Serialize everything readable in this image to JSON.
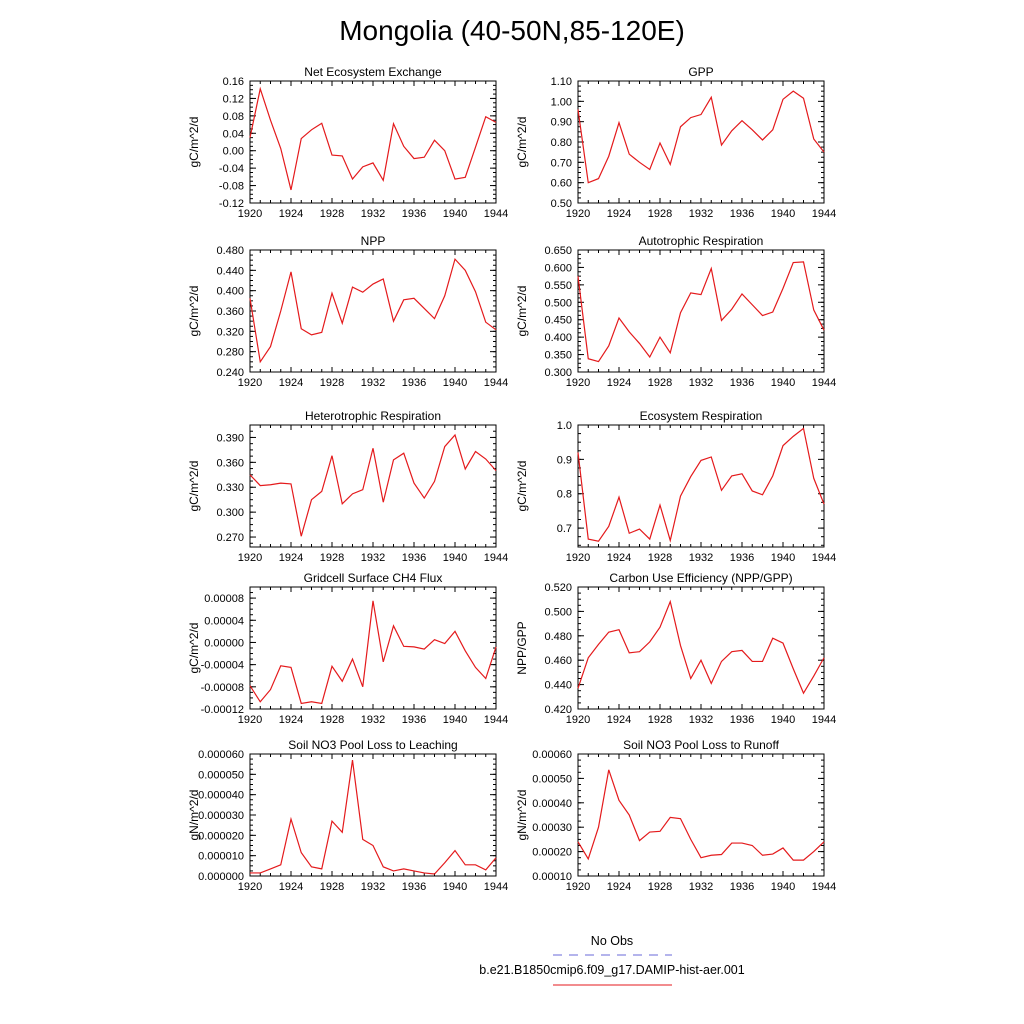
{
  "figure": {
    "title": "Mongolia (40-50N,85-120E)",
    "series_colors": {
      "model": "#e41a1c",
      "obs": "#6a6ad8"
    },
    "legend": [
      {
        "label": "No Obs",
        "style": "dashed",
        "color": "#6a6ad8"
      },
      {
        "label": "b.e21.B1850cmip6.f09_g17.DAMIP-hist-aer.001",
        "style": "solid",
        "color": "#e41a1c"
      }
    ]
  },
  "chart_data": [
    {
      "type": "line",
      "title": "Net Ecosystem Exchange",
      "xlabel": "",
      "ylabel": "gC/m^2/d",
      "xlim": [
        1920,
        1944
      ],
      "ylim": [
        -0.12,
        0.16
      ],
      "xticks": [
        "1920",
        "1924",
        "1928",
        "1932",
        "1936",
        "1940",
        "1944"
      ],
      "yticks": [
        "-0.12",
        "-0.08",
        "-0.04",
        "0.00",
        "0.04",
        "0.08",
        "0.12",
        "0.16"
      ],
      "x": [
        1920,
        1921,
        1922,
        1923,
        1924,
        1925,
        1926,
        1927,
        1928,
        1929,
        1930,
        1931,
        1932,
        1933,
        1934,
        1935,
        1936,
        1937,
        1938,
        1939,
        1940,
        1941,
        1942,
        1943,
        1944
      ],
      "series": [
        {
          "name": "b.e21.B1850cmip6.f09_g17.DAMIP-hist-aer.001",
          "values": [
            0.03,
            0.142,
            0.07,
            0.005,
            -0.09,
            0.028,
            0.048,
            0.063,
            -0.01,
            -0.012,
            -0.065,
            -0.037,
            -0.028,
            -0.068,
            0.062,
            0.01,
            -0.018,
            -0.015,
            0.024,
            0.0,
            -0.065,
            -0.061,
            0.008,
            0.078,
            0.065
          ]
        }
      ]
    },
    {
      "type": "line",
      "title": "GPP",
      "xlabel": "",
      "ylabel": "gC/m^2/d",
      "xlim": [
        1920,
        1944
      ],
      "ylim": [
        0.5,
        1.1
      ],
      "xticks": [
        "1920",
        "1924",
        "1928",
        "1932",
        "1936",
        "1940",
        "1944"
      ],
      "yticks": [
        "0.50",
        "0.60",
        "0.70",
        "0.80",
        "0.90",
        "1.00",
        "1.10"
      ],
      "x": [
        1920,
        1921,
        1922,
        1923,
        1924,
        1925,
        1926,
        1927,
        1928,
        1929,
        1930,
        1931,
        1932,
        1933,
        1934,
        1935,
        1936,
        1937,
        1938,
        1939,
        1940,
        1941,
        1942,
        1943,
        1944
      ],
      "series": [
        {
          "name": "b.e21.B1850cmip6.f09_g17.DAMIP-hist-aer.001",
          "values": [
            0.96,
            0.6,
            0.62,
            0.73,
            0.895,
            0.74,
            0.7,
            0.665,
            0.795,
            0.69,
            0.875,
            0.92,
            0.935,
            1.02,
            0.785,
            0.855,
            0.905,
            0.86,
            0.81,
            0.86,
            1.01,
            1.05,
            1.015,
            0.815,
            0.75
          ]
        }
      ]
    },
    {
      "type": "line",
      "title": "NPP",
      "xlabel": "",
      "ylabel": "gC/m^2/d",
      "xlim": [
        1920,
        1944
      ],
      "ylim": [
        0.24,
        0.48
      ],
      "xticks": [
        "1920",
        "1924",
        "1928",
        "1932",
        "1936",
        "1940",
        "1944"
      ],
      "yticks": [
        "0.240",
        "0.280",
        "0.320",
        "0.360",
        "0.400",
        "0.440",
        "0.480"
      ],
      "x": [
        1920,
        1921,
        1922,
        1923,
        1924,
        1925,
        1926,
        1927,
        1928,
        1929,
        1930,
        1931,
        1932,
        1933,
        1934,
        1935,
        1936,
        1937,
        1938,
        1939,
        1940,
        1941,
        1942,
        1943,
        1944
      ],
      "series": [
        {
          "name": "b.e21.B1850cmip6.f09_g17.DAMIP-hist-aer.001",
          "values": [
            0.385,
            0.26,
            0.29,
            0.36,
            0.437,
            0.325,
            0.313,
            0.318,
            0.395,
            0.336,
            0.407,
            0.397,
            0.413,
            0.423,
            0.34,
            0.382,
            0.385,
            0.365,
            0.345,
            0.39,
            0.462,
            0.44,
            0.398,
            0.338,
            0.323
          ]
        }
      ]
    },
    {
      "type": "line",
      "title": "Autotrophic Respiration",
      "xlabel": "",
      "ylabel": "gC/m^2/d",
      "xlim": [
        1920,
        1944
      ],
      "ylim": [
        0.3,
        0.65
      ],
      "xticks": [
        "1920",
        "1924",
        "1928",
        "1932",
        "1936",
        "1940",
        "1944"
      ],
      "yticks": [
        "0.300",
        "0.350",
        "0.400",
        "0.450",
        "0.500",
        "0.550",
        "0.600",
        "0.650"
      ],
      "x": [
        1920,
        1921,
        1922,
        1923,
        1924,
        1925,
        1926,
        1927,
        1928,
        1929,
        1930,
        1931,
        1932,
        1933,
        1934,
        1935,
        1936,
        1937,
        1938,
        1939,
        1940,
        1941,
        1942,
        1943,
        1944
      ],
      "series": [
        {
          "name": "b.e21.B1850cmip6.f09_g17.DAMIP-hist-aer.001",
          "values": [
            0.575,
            0.338,
            0.33,
            0.375,
            0.455,
            0.415,
            0.382,
            0.343,
            0.4,
            0.355,
            0.47,
            0.527,
            0.522,
            0.597,
            0.448,
            0.48,
            0.524,
            0.493,
            0.462,
            0.472,
            0.54,
            0.614,
            0.616,
            0.478,
            0.42
          ]
        }
      ]
    },
    {
      "type": "line",
      "title": "Heterotrophic Respiration",
      "xlabel": "",
      "ylabel": "gC/m^2/d",
      "xlim": [
        1920,
        1944
      ],
      "ylim": [
        0.258,
        0.405
      ],
      "xticks": [
        "1920",
        "1924",
        "1928",
        "1932",
        "1936",
        "1940",
        "1944"
      ],
      "yticks": [
        "0.270",
        "0.300",
        "0.330",
        "0.360",
        "0.390"
      ],
      "x": [
        1920,
        1921,
        1922,
        1923,
        1924,
        1925,
        1926,
        1927,
        1928,
        1929,
        1930,
        1931,
        1932,
        1933,
        1934,
        1935,
        1936,
        1937,
        1938,
        1939,
        1940,
        1941,
        1942,
        1943,
        1944
      ],
      "series": [
        {
          "name": "b.e21.B1850cmip6.f09_g17.DAMIP-hist-aer.001",
          "values": [
            0.345,
            0.332,
            0.333,
            0.335,
            0.334,
            0.271,
            0.315,
            0.325,
            0.368,
            0.31,
            0.322,
            0.327,
            0.377,
            0.312,
            0.363,
            0.371,
            0.335,
            0.317,
            0.337,
            0.379,
            0.393,
            0.352,
            0.373,
            0.364,
            0.35
          ]
        }
      ]
    },
    {
      "type": "line",
      "title": "Ecosystem Respiration",
      "xlabel": "",
      "ylabel": "gC/m^2/d",
      "xlim": [
        1920,
        1944
      ],
      "ylim": [
        0.645,
        1.0
      ],
      "xticks": [
        "1920",
        "1924",
        "1928",
        "1932",
        "1936",
        "1940",
        "1944"
      ],
      "yticks": [
        "0.7",
        "0.8",
        "0.9",
        "1.0"
      ],
      "x": [
        1920,
        1921,
        1922,
        1923,
        1924,
        1925,
        1926,
        1927,
        1928,
        1929,
        1930,
        1931,
        1932,
        1933,
        1934,
        1935,
        1936,
        1937,
        1938,
        1939,
        1940,
        1941,
        1942,
        1943,
        1944
      ],
      "series": [
        {
          "name": "b.e21.B1850cmip6.f09_g17.DAMIP-hist-aer.001",
          "values": [
            0.92,
            0.668,
            0.662,
            0.705,
            0.79,
            0.685,
            0.697,
            0.668,
            0.767,
            0.664,
            0.793,
            0.85,
            0.897,
            0.907,
            0.81,
            0.852,
            0.858,
            0.808,
            0.797,
            0.852,
            0.94,
            0.967,
            0.99,
            0.845,
            0.77
          ]
        }
      ]
    },
    {
      "type": "line",
      "title": "Gridcell Surface CH4 Flux",
      "xlabel": "",
      "ylabel": "gC/m^2/d",
      "xlim": [
        1920,
        1944
      ],
      "ylim": [
        -0.00012,
        0.0001
      ],
      "xticks": [
        "1920",
        "1924",
        "1928",
        "1932",
        "1936",
        "1940",
        "1944"
      ],
      "yticks": [
        "-0.00012",
        "-0.00008",
        "-0.00004",
        "0.00000",
        "0.00004",
        "0.00008"
      ],
      "x": [
        1920,
        1921,
        1922,
        1923,
        1924,
        1925,
        1926,
        1927,
        1928,
        1929,
        1930,
        1931,
        1932,
        1933,
        1934,
        1935,
        1936,
        1937,
        1938,
        1939,
        1940,
        1941,
        1942,
        1943,
        1944
      ],
      "series": [
        {
          "name": "b.e21.B1850cmip6.f09_g17.DAMIP-hist-aer.001",
          "values": [
            -7.8e-05,
            -0.000107,
            -8.5e-05,
            -4.2e-05,
            -4.5e-05,
            -0.00011,
            -0.000107,
            -0.00011,
            -4.3e-05,
            -7e-05,
            -3e-05,
            -8e-05,
            7.5e-05,
            -3.5e-05,
            3e-05,
            -7e-06,
            -8e-06,
            -1.2e-05,
            5e-06,
            -2e-06,
            2e-05,
            -1.5e-05,
            -4.5e-05,
            -6.5e-05,
            -8e-06
          ]
        }
      ]
    },
    {
      "type": "line",
      "title": "Carbon Use Efficiency (NPP/GPP)",
      "xlabel": "",
      "ylabel": "NPP/GPP",
      "xlim": [
        1920,
        1944
      ],
      "ylim": [
        0.42,
        0.52
      ],
      "xticks": [
        "1920",
        "1924",
        "1928",
        "1932",
        "1936",
        "1940",
        "1944"
      ],
      "yticks": [
        "0.420",
        "0.440",
        "0.460",
        "0.480",
        "0.500",
        "0.520"
      ],
      "x": [
        1920,
        1921,
        1922,
        1923,
        1924,
        1925,
        1926,
        1927,
        1928,
        1929,
        1930,
        1931,
        1932,
        1933,
        1934,
        1935,
        1936,
        1937,
        1938,
        1939,
        1940,
        1941,
        1942,
        1943,
        1944
      ],
      "series": [
        {
          "name": "b.e21.B1850cmip6.f09_g17.DAMIP-hist-aer.001",
          "values": [
            0.437,
            0.462,
            0.473,
            0.483,
            0.485,
            0.466,
            0.467,
            0.475,
            0.487,
            0.508,
            0.472,
            0.445,
            0.46,
            0.441,
            0.459,
            0.467,
            0.468,
            0.459,
            0.459,
            0.478,
            0.474,
            0.453,
            0.433,
            0.447,
            0.462
          ]
        }
      ]
    },
    {
      "type": "line",
      "title": "Soil NO3 Pool Loss to Leaching",
      "xlabel": "",
      "ylabel": "gN/m^2/d",
      "xlim": [
        1920,
        1944
      ],
      "ylim": [
        0,
        6e-05
      ],
      "xticks": [
        "1920",
        "1924",
        "1928",
        "1932",
        "1936",
        "1940",
        "1944"
      ],
      "yticks": [
        "0.000000",
        "0.000010",
        "0.000020",
        "0.000030",
        "0.000040",
        "0.000050",
        "0.000060"
      ],
      "x": [
        1920,
        1921,
        1922,
        1923,
        1924,
        1925,
        1926,
        1927,
        1928,
        1929,
        1930,
        1931,
        1932,
        1933,
        1934,
        1935,
        1936,
        1937,
        1938,
        1939,
        1940,
        1941,
        1942,
        1943,
        1944
      ],
      "series": [
        {
          "name": "b.e21.B1850cmip6.f09_g17.DAMIP-hist-aer.001",
          "values": [
            1.5e-06,
            1.5e-06,
            3.5e-06,
            5.5e-06,
            2.8e-05,
            1.15e-05,
            4.5e-06,
            3.5e-06,
            2.7e-05,
            2.15e-05,
            5.7e-05,
            1.8e-05,
            1.5e-05,
            4.5e-06,
            2.5e-06,
            3.5e-06,
            2.5e-06,
            1.5e-06,
            1e-06,
            6.5e-06,
            1.25e-05,
            5.5e-06,
            5.5e-06,
            3e-06,
            9e-06
          ]
        }
      ]
    },
    {
      "type": "line",
      "title": "Soil NO3 Pool Loss to Runoff",
      "xlabel": "",
      "ylabel": "gN/m^2/d",
      "xlim": [
        1920,
        1944
      ],
      "ylim": [
        0.0001,
        0.0006
      ],
      "xticks": [
        "1920",
        "1924",
        "1928",
        "1932",
        "1936",
        "1940",
        "1944"
      ],
      "yticks": [
        "0.00010",
        "0.00020",
        "0.00030",
        "0.00040",
        "0.00050",
        "0.00060"
      ],
      "x": [
        1920,
        1921,
        1922,
        1923,
        1924,
        1925,
        1926,
        1927,
        1928,
        1929,
        1930,
        1931,
        1932,
        1933,
        1934,
        1935,
        1936,
        1937,
        1938,
        1939,
        1940,
        1941,
        1942,
        1943,
        1944
      ],
      "series": [
        {
          "name": "b.e21.B1850cmip6.f09_g17.DAMIP-hist-aer.001",
          "values": [
            0.00024,
            0.00017,
            0.0003,
            0.000535,
            0.00041,
            0.00035,
            0.000245,
            0.00028,
            0.000283,
            0.00034,
            0.000335,
            0.00025,
            0.000175,
            0.000185,
            0.000188,
            0.000235,
            0.000235,
            0.000225,
            0.000185,
            0.00019,
            0.000215,
            0.000165,
            0.000165,
            0.0002,
            0.00024
          ]
        }
      ]
    }
  ]
}
